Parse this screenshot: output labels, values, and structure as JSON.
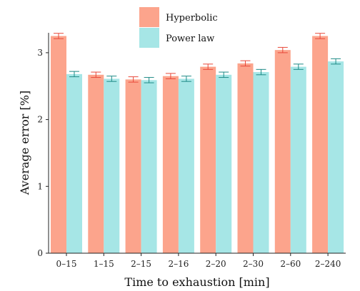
{
  "chart_data": {
    "type": "bar",
    "title": "",
    "xlabel": "Time to exhaustion [min]",
    "ylabel": "Average error [%]",
    "categories": [
      "0–15",
      "1–15",
      "2–15",
      "2–16",
      "2–20",
      "2–30",
      "2–60",
      "2–240"
    ],
    "ylim": [
      0,
      3.3
    ],
    "yticks": [
      "0",
      "1",
      "2",
      "3"
    ],
    "grid": false,
    "legend_position": "top-center",
    "series": [
      {
        "name": "Hyperbolic",
        "color": "#FCA48C",
        "error_color": "#E8483A",
        "values": [
          3.25,
          2.67,
          2.6,
          2.65,
          2.79,
          2.84,
          3.04,
          3.25
        ],
        "errors": [
          0.04,
          0.04,
          0.04,
          0.04,
          0.04,
          0.04,
          0.04,
          0.04
        ]
      },
      {
        "name": "Power law",
        "color": "#A6E6E6",
        "error_color": "#1D8A86",
        "values": [
          2.68,
          2.61,
          2.59,
          2.61,
          2.67,
          2.71,
          2.79,
          2.87
        ],
        "errors": [
          0.04,
          0.04,
          0.04,
          0.04,
          0.04,
          0.04,
          0.04,
          0.04
        ]
      }
    ]
  }
}
